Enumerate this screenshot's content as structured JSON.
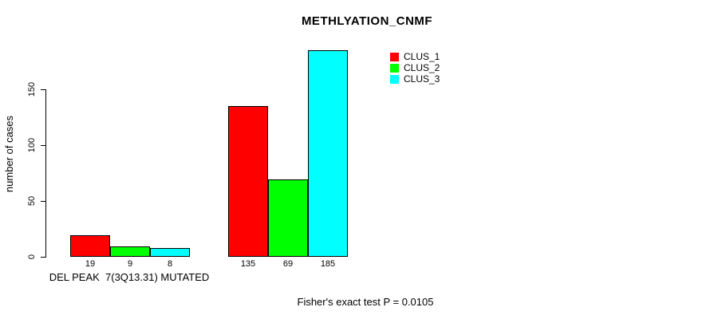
{
  "chart_data": {
    "type": "bar",
    "title": "METHLYATION_CNMF",
    "ylabel": "number of cases",
    "xlabel": "",
    "ylim": [
      0,
      185
    ],
    "yticks": [
      0,
      50,
      100,
      150
    ],
    "grid": false,
    "legend_position": "top-right",
    "series": [
      {
        "name": "CLUS_1",
        "color": "#FF0000",
        "values": [
          19,
          135
        ]
      },
      {
        "name": "CLUS_2",
        "color": "#00FF00",
        "values": [
          9,
          69
        ]
      },
      {
        "name": "CLUS_3",
        "color": "#00FFFF",
        "values": [
          8,
          185
        ]
      }
    ],
    "groups": [
      {
        "label": "DEL PEAK  7(3Q13.31) MUTATED",
        "values": [
          19,
          9,
          8
        ]
      },
      {
        "label": "",
        "values": [
          135,
          69,
          185
        ]
      }
    ],
    "bar_value_labels": [
      [
        "19",
        "9",
        "8"
      ],
      [
        "135",
        "69",
        "185"
      ]
    ],
    "annotation": "Fisher's exact test P = 0.0105"
  }
}
